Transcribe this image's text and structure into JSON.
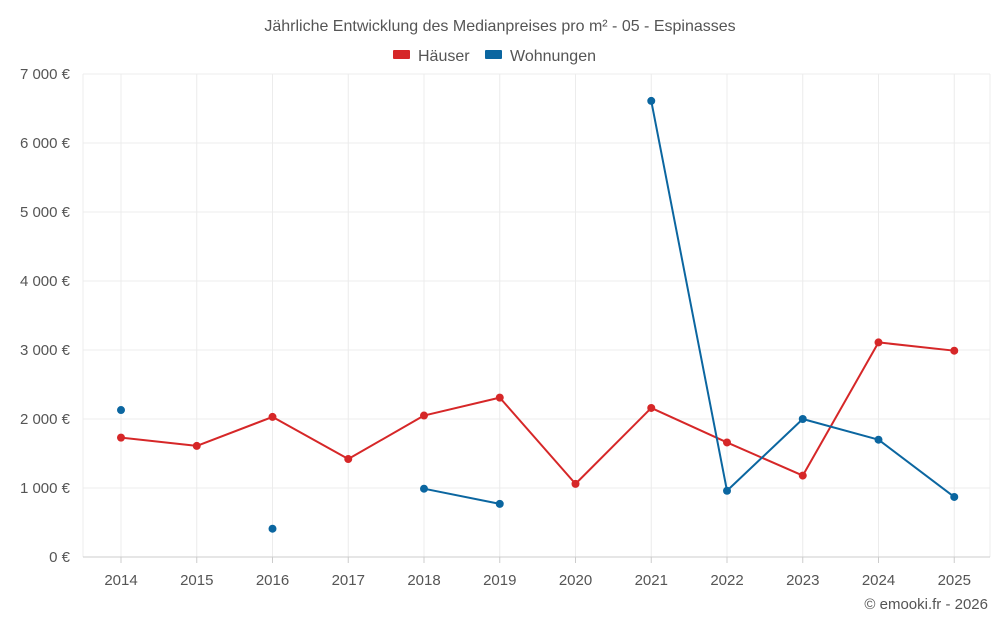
{
  "chart_data": {
    "type": "line",
    "title": "Jährliche Entwicklung des Medianpreises pro m² - 05 - Espinasses",
    "categories": [
      "2014",
      "2015",
      "2016",
      "2017",
      "2018",
      "2019",
      "2020",
      "2021",
      "2022",
      "2023",
      "2024",
      "2025"
    ],
    "y_ticks": [
      "0 €",
      "1 000 €",
      "2 000 €",
      "3 000 €",
      "4 000 €",
      "5 000 €",
      "6 000 €",
      "7 000 €"
    ],
    "ylim": [
      0,
      7000
    ],
    "grid": true,
    "legend_position": "top-center",
    "series": [
      {
        "name": "Häuser",
        "color": "#d62728",
        "values": [
          1730,
          1610,
          2030,
          1420,
          2050,
          2310,
          1060,
          2160,
          1660,
          1180,
          3110,
          2990
        ]
      },
      {
        "name": "Wohnungen",
        "color": "#0b66a0",
        "values": [
          2130,
          null,
          410,
          null,
          990,
          770,
          null,
          6610,
          960,
          2000,
          1700,
          870
        ]
      }
    ]
  },
  "credit": "© emooki.fr - 2026"
}
